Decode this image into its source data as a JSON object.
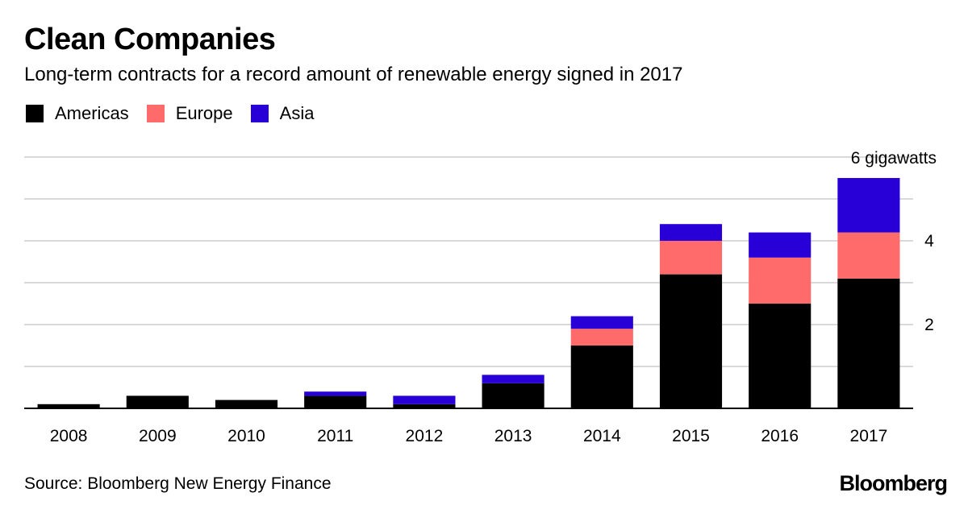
{
  "title": "Clean Companies",
  "subtitle": "Long-term contracts for a record amount of renewable energy signed in 2017",
  "source": "Source: Bloomberg New Energy Finance",
  "brand": "Bloomberg",
  "colors": {
    "Americas": "#000000",
    "Europe": "#ff6b6b",
    "Asia": "#2800d7",
    "grid": "#d9d9d9",
    "axis": "#000000"
  },
  "chart_data": {
    "type": "bar",
    "stacked": true,
    "categories": [
      "2008",
      "2009",
      "2010",
      "2011",
      "2012",
      "2013",
      "2014",
      "2015",
      "2016",
      "2017"
    ],
    "series": [
      {
        "name": "Americas",
        "values": [
          0.1,
          0.3,
          0.2,
          0.3,
          0.1,
          0.6,
          1.5,
          3.2,
          2.5,
          3.1
        ]
      },
      {
        "name": "Europe",
        "values": [
          0,
          0,
          0,
          0,
          0,
          0,
          0.4,
          0.8,
          1.1,
          1.1
        ]
      },
      {
        "name": "Asia",
        "values": [
          0,
          0,
          0,
          0.1,
          0.2,
          0.2,
          0.3,
          0.4,
          0.6,
          1.3
        ]
      }
    ],
    "ylim": [
      0,
      6
    ],
    "yticks": [
      2,
      4,
      6
    ],
    "ytick_labels": [
      "2",
      "4",
      "6 gigawatts"
    ],
    "y_grid_step": 1,
    "grid": true,
    "y_axis_position": "right",
    "legend_position": "top-left"
  }
}
